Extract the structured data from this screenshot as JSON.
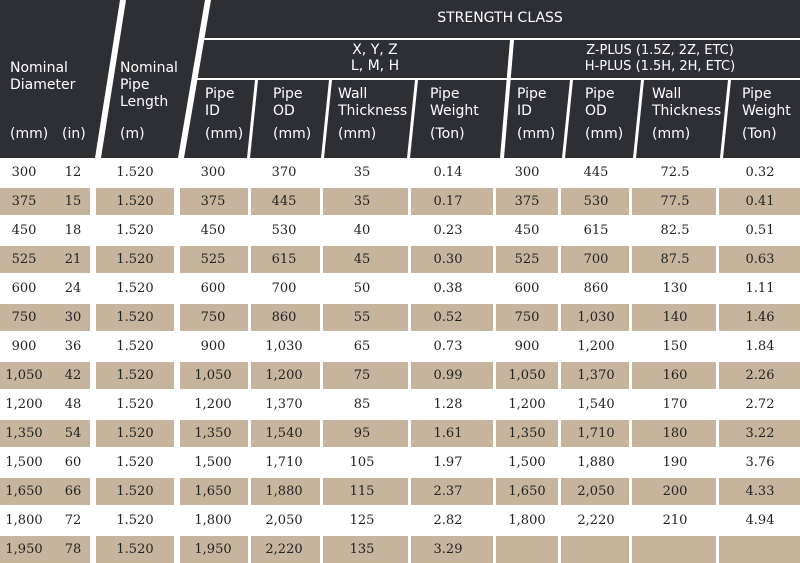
{
  "colors": {
    "header_bg": "#2e2f33",
    "header_text": "#ffffff",
    "row_stripe": "#c6b59c",
    "row_plain": "#ffffff",
    "divider": "#ffffff"
  },
  "header": {
    "strength_class": "STRENGTH CLASS",
    "nominal_diameter": [
      "Nominal",
      "Diameter"
    ],
    "nominal_diameter_mm": "(mm)",
    "nominal_diameter_in": "(in)",
    "nominal_pipe_length": [
      "Nominal",
      "Pipe",
      "Length"
    ],
    "nominal_pipe_length_unit": "(m)",
    "group1": {
      "line1": "X, Y, Z",
      "line2": "L, M, H",
      "cols": [
        [
          "Pipe",
          "ID",
          "(mm)"
        ],
        [
          "Pipe",
          "OD",
          "(mm)"
        ],
        [
          "Wall",
          "Thickness",
          "(mm)"
        ],
        [
          "Pipe",
          "Weight",
          "(Ton)"
        ]
      ]
    },
    "group2": {
      "line1": "Z-PLUS (1.5Z, 2Z, ETC)",
      "line2": "H-PLUS (1.5H, 2H, ETC)",
      "cols": [
        [
          "Pipe",
          "ID",
          "(mm)"
        ],
        [
          "Pipe",
          "OD",
          "(mm)"
        ],
        [
          "Wall",
          "Thickness",
          "(mm)"
        ],
        [
          "Pipe",
          "Weight",
          "(Ton)"
        ]
      ]
    }
  },
  "rows": [
    [
      "300",
      "12",
      "1.520",
      "300",
      "370",
      "35",
      "0.14",
      "300",
      "445",
      "72.5",
      "0.32"
    ],
    [
      "375",
      "15",
      "1.520",
      "375",
      "445",
      "35",
      "0.17",
      "375",
      "530",
      "77.5",
      "0.41"
    ],
    [
      "450",
      "18",
      "1.520",
      "450",
      "530",
      "40",
      "0.23",
      "450",
      "615",
      "82.5",
      "0.51"
    ],
    [
      "525",
      "21",
      "1.520",
      "525",
      "615",
      "45",
      "0.30",
      "525",
      "700",
      "87.5",
      "0.63"
    ],
    [
      "600",
      "24",
      "1.520",
      "600",
      "700",
      "50",
      "0.38",
      "600",
      "860",
      "130",
      "1.11"
    ],
    [
      "750",
      "30",
      "1.520",
      "750",
      "860",
      "55",
      "0.52",
      "750",
      "1,030",
      "140",
      "1.46"
    ],
    [
      "900",
      "36",
      "1.520",
      "900",
      "1,030",
      "65",
      "0.73",
      "900",
      "1,200",
      "150",
      "1.84"
    ],
    [
      "1,050",
      "42",
      "1.520",
      "1,050",
      "1,200",
      "75",
      "0.99",
      "1,050",
      "1,370",
      "160",
      "2.26"
    ],
    [
      "1,200",
      "48",
      "1.520",
      "1,200",
      "1,370",
      "85",
      "1.28",
      "1,200",
      "1,540",
      "170",
      "2.72"
    ],
    [
      "1,350",
      "54",
      "1.520",
      "1,350",
      "1,540",
      "95",
      "1.61",
      "1,350",
      "1,710",
      "180",
      "3.22"
    ],
    [
      "1,500",
      "60",
      "1.520",
      "1,500",
      "1,710",
      "105",
      "1.97",
      "1,500",
      "1,880",
      "190",
      "3.76"
    ],
    [
      "1,650",
      "66",
      "1.520",
      "1,650",
      "1,880",
      "115",
      "2.37",
      "1,650",
      "2,050",
      "200",
      "4.33"
    ],
    [
      "1,800",
      "72",
      "1.520",
      "1,800",
      "2,050",
      "125",
      "2.82",
      "1,800",
      "2,220",
      "210",
      "4.94"
    ],
    [
      "1,950",
      "78",
      "1.520",
      "1,950",
      "2,220",
      "135",
      "3.29",
      "",
      "",
      "",
      ""
    ]
  ]
}
